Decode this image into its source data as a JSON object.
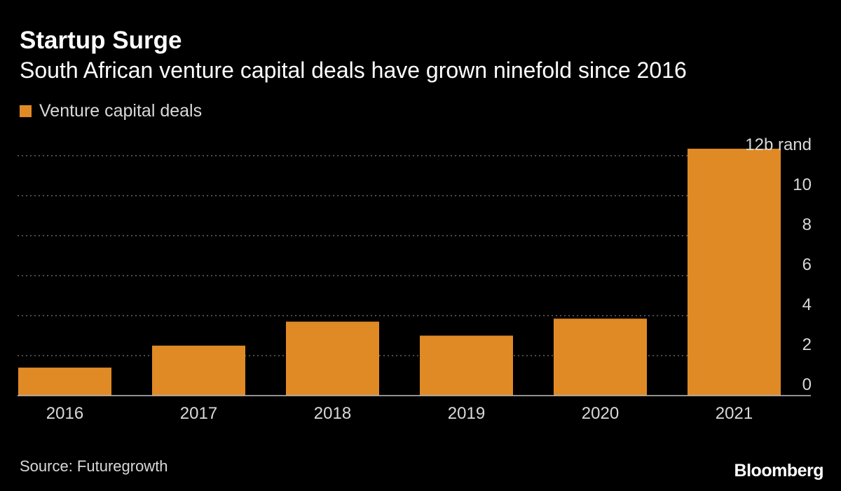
{
  "header": {
    "title": "Startup Surge",
    "subtitle": "South African venture capital deals have grown ninefold since 2016"
  },
  "footer": {
    "source": "Source: Futuregrowth",
    "logo": "Bloomberg"
  },
  "colors": {
    "background": "#000000",
    "bar": "#e08a26",
    "grid": "#7a7a7a",
    "text": "#d9d9d9"
  },
  "chart_data": {
    "type": "bar",
    "categories": [
      "2016",
      "2017",
      "2018",
      "2019",
      "2020",
      "2021"
    ],
    "series": [
      {
        "name": "Venture capital deals",
        "values": [
          1.4,
          2.5,
          3.7,
          3.0,
          3.85,
          12.35
        ]
      }
    ],
    "ylim": [
      0,
      12
    ],
    "yticks": [
      0,
      2,
      4,
      6,
      8,
      10,
      12
    ],
    "ytick_labels": [
      "0",
      "2",
      "4",
      "6",
      "8",
      "10",
      "12b rand"
    ],
    "grid": true,
    "grid_style": "dotted",
    "y_axis_side": "right",
    "legend_position": "top-left"
  }
}
